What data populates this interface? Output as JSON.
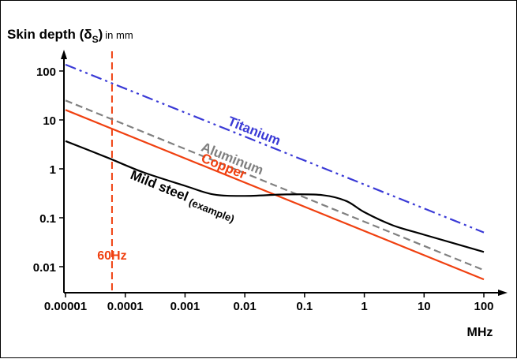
{
  "chart_data": {
    "type": "line",
    "ylabel_main": "Skin depth (δ",
    "ylabel_sub": "S",
    "ylabel_paren": ")",
    "ylabel_unit": "in mm",
    "xlabel": "MHz",
    "xscale": "log",
    "yscale": "log",
    "xlim": [
      1e-05,
      100
    ],
    "ylim": [
      0.00316,
      316
    ],
    "grid": false,
    "x_ticks": [
      1e-05,
      0.0001,
      0.001,
      0.01,
      0.1,
      1,
      10,
      100
    ],
    "x_tick_labels": [
      "0.00001",
      "0.0001",
      "0.001",
      "0.01",
      "0.1",
      "1",
      "10",
      "100"
    ],
    "y_ticks": [
      100,
      10,
      1,
      0.1,
      0.01
    ],
    "y_tick_labels": [
      "100",
      "10",
      "1",
      "0.1",
      "0.01"
    ],
    "series": [
      {
        "name": "Titanium",
        "color": "#3a3ad6",
        "dash": "dash-dot-dot",
        "x": [
          1e-05,
          100
        ],
        "y": [
          135,
          0.05
        ]
      },
      {
        "name": "Aluminum",
        "color": "#808080",
        "dash": "dashed",
        "x": [
          1e-05,
          100
        ],
        "y": [
          25,
          0.0085
        ]
      },
      {
        "name": "Copper",
        "color": "#f04010",
        "dash": "solid",
        "x": [
          1e-05,
          100
        ],
        "y": [
          16,
          0.0055
        ]
      },
      {
        "name": "Mild steel",
        "name_suffix": "(example)",
        "color": "#000000",
        "dash": "solid",
        "x": [
          1e-05,
          5e-05,
          0.0002,
          0.001,
          0.003,
          0.01,
          0.05,
          0.2,
          0.5,
          1,
          3,
          10,
          100
        ],
        "y": [
          3.7,
          1.7,
          0.85,
          0.45,
          0.3,
          0.28,
          0.3,
          0.29,
          0.22,
          0.13,
          0.07,
          0.045,
          0.02
        ]
      }
    ],
    "annotations": [
      {
        "text": "60Hz",
        "x": 6e-05,
        "color": "#f04010",
        "style": "vertical-dashed-line"
      }
    ]
  }
}
